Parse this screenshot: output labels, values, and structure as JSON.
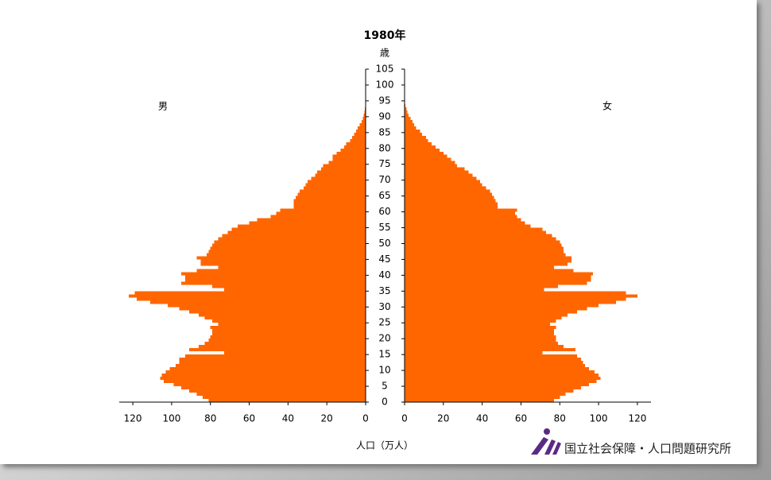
{
  "chart_data": {
    "type": "pyramid",
    "title": "1980年",
    "y_label": "歳",
    "x_label": "人口（万人）",
    "source": "国立社会保障・人口問題研究所",
    "ages": [
      0,
      1,
      2,
      3,
      4,
      5,
      6,
      7,
      8,
      9,
      10,
      11,
      12,
      13,
      14,
      15,
      16,
      17,
      18,
      19,
      20,
      21,
      22,
      23,
      24,
      25,
      26,
      27,
      28,
      29,
      30,
      31,
      32,
      33,
      34,
      35,
      36,
      37,
      38,
      39,
      40,
      41,
      42,
      43,
      44,
      45,
      46,
      47,
      48,
      49,
      50,
      51,
      52,
      53,
      54,
      55,
      56,
      57,
      58,
      59,
      60,
      61,
      62,
      63,
      64,
      65,
      66,
      67,
      68,
      69,
      70,
      71,
      72,
      73,
      74,
      75,
      76,
      77,
      78,
      79,
      80,
      81,
      82,
      83,
      84,
      85,
      86,
      87,
      88,
      89,
      90,
      91,
      92,
      93,
      94
    ],
    "agelim": [
      0,
      105
    ],
    "ageticks": [
      0,
      5,
      10,
      15,
      20,
      25,
      30,
      35,
      40,
      45,
      50,
      55,
      60,
      65,
      70,
      75,
      80,
      85,
      90,
      95,
      100,
      105
    ],
    "xlim": [
      0,
      127
    ],
    "xticks": [
      0,
      20,
      40,
      60,
      80,
      100,
      120
    ],
    "series": [
      {
        "name": "男",
        "color": "#ff6600",
        "values": [
          81,
          84,
          87,
          91,
          95,
          99,
          104,
          106,
          105,
          103,
          101,
          98,
          96,
          96,
          93,
          73,
          91,
          86,
          83,
          81,
          80,
          79,
          79,
          80,
          76,
          79,
          83,
          86,
          91,
          96,
          102,
          111,
          118,
          122,
          119,
          73,
          79,
          95,
          93,
          93,
          95,
          87,
          76,
          85,
          85,
          87,
          82,
          81,
          80,
          79,
          78,
          76,
          74,
          71,
          69,
          66,
          60,
          56,
          49,
          46,
          44,
          37,
          37,
          37,
          36,
          35,
          34,
          32,
          31,
          30,
          28,
          26,
          25,
          23,
          22,
          19,
          17,
          17,
          15,
          13,
          11,
          10,
          8,
          7,
          6,
          5,
          4,
          3,
          2,
          1.5,
          1,
          0.7,
          0.4,
          0.2,
          0.1
        ]
      },
      {
        "name": "女",
        "color": "#ff6600",
        "values": [
          77,
          80,
          83,
          87,
          91,
          95,
          99,
          101,
          100,
          98,
          95,
          93,
          92,
          91,
          89,
          71,
          88,
          82,
          79,
          78,
          78,
          77,
          77,
          78,
          75,
          78,
          81,
          84,
          89,
          94,
          100,
          109,
          114,
          120,
          114,
          72,
          79,
          94,
          96,
          96,
          97,
          87,
          77,
          84,
          86,
          86,
          83,
          82,
          82,
          81,
          80,
          78,
          76,
          73,
          71,
          65,
          62,
          60,
          58,
          57,
          58,
          48,
          48,
          47,
          46,
          45,
          44,
          42,
          40,
          39,
          37,
          35,
          33,
          31,
          27,
          26,
          24,
          22,
          20,
          18,
          16,
          14,
          12,
          11,
          9,
          8,
          6,
          5,
          4,
          3,
          2,
          1.5,
          1,
          0.5,
          0.3
        ]
      }
    ]
  }
}
